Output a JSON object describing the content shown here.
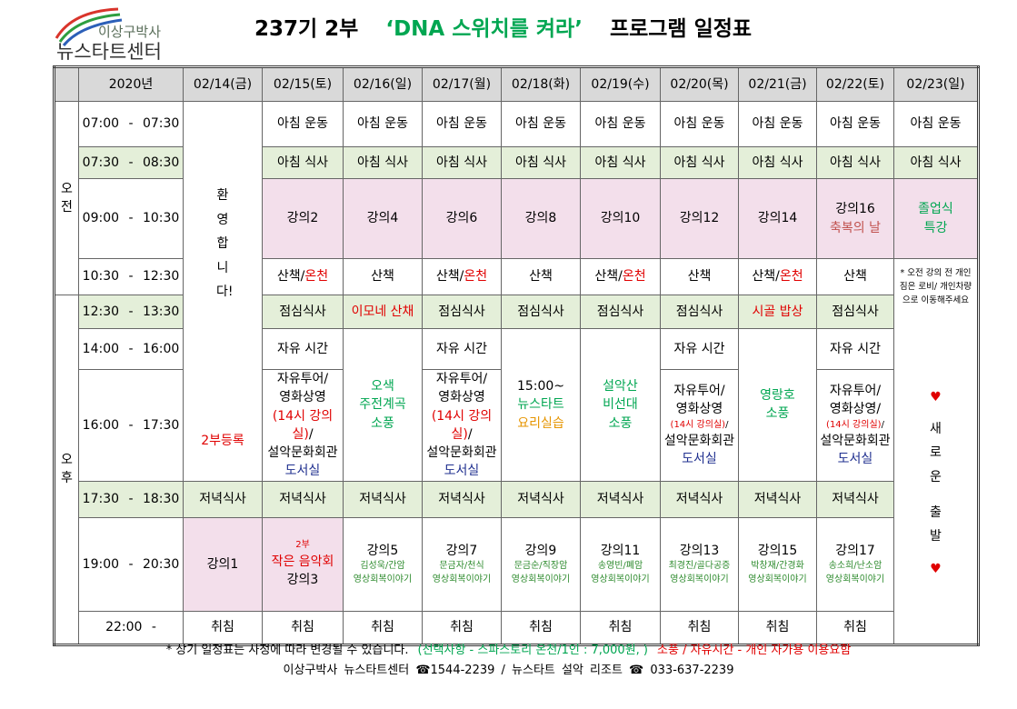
{
  "header": {
    "logo_line1": "이상구박사",
    "logo_line2": "뉴스타트센터",
    "title": [
      "237기 2부",
      {
        "text": "‘DNA 스위치를 켜라’",
        "color": "#00a651"
      },
      "프로그램 일정표"
    ]
  },
  "table": {
    "corner": "2020년",
    "dates": [
      "02/14(금)",
      "02/15(토)",
      "02/16(일)",
      "02/17(월)",
      "02/18(화)",
      "02/19(수)",
      "02/20(목)",
      "02/21(금)",
      "02/22(토)",
      "02/23(일)"
    ],
    "periods": [
      [
        "오",
        "전"
      ],
      [
        "오",
        "후"
      ]
    ],
    "rows": [
      {
        "time": "07:00 - 07:30",
        "cells": [
          {
            "lines": [
              "환영합니다!",
              {
                "text": "2부등록",
                "color": "#e00000"
              }
            ]
          },
          {
            "lines": [
              "아침 운동"
            ]
          },
          {
            "lines": [
              "아침 운동"
            ]
          },
          {
            "lines": [
              "아침 운동"
            ]
          },
          {
            "lines": [
              "아침 운동"
            ]
          },
          {
            "lines": [
              "아침 운동"
            ]
          },
          {
            "lines": [
              "아침 운동"
            ]
          },
          {
            "lines": [
              "아침 운동"
            ]
          },
          {
            "lines": [
              "아침 운동"
            ]
          },
          {
            "lines": [
              "아침 운동"
            ]
          }
        ]
      },
      {
        "time": "07:30 - 08:30",
        "bg": "#e4efd9",
        "cells": [
          {
            "lines": [
              "아침 식사"
            ]
          },
          {
            "lines": [
              "아침 식사"
            ]
          },
          {
            "lines": [
              "아침 식사"
            ]
          },
          {
            "lines": [
              "아침 식사"
            ]
          },
          {
            "lines": [
              "아침 식사"
            ]
          },
          {
            "lines": [
              "아침 식사"
            ]
          },
          {
            "lines": [
              "아침 식사"
            ]
          },
          {
            "lines": [
              "아침 식사"
            ]
          },
          {
            "lines": [
              "아침 식사"
            ]
          }
        ]
      },
      {
        "time": "09:00 - 10:30",
        "cell_bg": "#f3dfeb",
        "cells": [
          {
            "lines": [
              "강의2"
            ]
          },
          {
            "lines": [
              "강의4"
            ]
          },
          {
            "lines": [
              "강의6"
            ]
          },
          {
            "lines": [
              "강의8"
            ]
          },
          {
            "lines": [
              "강의10"
            ]
          },
          {
            "lines": [
              "강의12"
            ]
          },
          {
            "lines": [
              "강의14"
            ]
          },
          {
            "lines": [
              "강의16",
              {
                "text": "축복의 날",
                "color": "#c0504d"
              }
            ]
          },
          {
            "lines": [
              {
                "text": "졸업식",
                "color": "#00a651"
              },
              {
                "text": "특강",
                "color": "#00a651"
              }
            ]
          }
        ]
      },
      {
        "time": "10:30 - 12:30",
        "cells": [
          {
            "lines": [
              [
                "산책/",
                {
                  "text": "온천",
                  "color": "#e00000"
                }
              ]
            ]
          },
          {
            "lines": [
              "산책"
            ]
          },
          {
            "lines": [
              [
                "산책/",
                {
                  "text": "온천",
                  "color": "#e00000"
                }
              ]
            ]
          },
          {
            "lines": [
              "산책"
            ]
          },
          {
            "lines": [
              [
                "산책/",
                {
                  "text": "온천",
                  "color": "#e00000"
                }
              ]
            ]
          },
          {
            "lines": [
              "산책"
            ]
          },
          {
            "lines": [
              [
                "산책/",
                {
                  "text": "온천",
                  "color": "#e00000"
                }
              ]
            ]
          },
          {
            "lines": [
              "산책"
            ]
          },
          {
            "lines": [
              "* 오전 강의 전 개인 짐은 로비/ 개인차량으로 이동해주세요",
              {
                "text": "♥",
                "color": "#e00000"
              },
              "새로운",
              "출발",
              {
                "text": "♥",
                "color": "#e00000"
              }
            ]
          }
        ]
      },
      {
        "time": "12:30 - 13:30",
        "bg": "#e4efd9",
        "cells": [
          {
            "lines": [
              "점심식사"
            ]
          },
          {
            "lines": [
              {
                "text": "이모네 산채",
                "color": "#e00000"
              }
            ]
          },
          {
            "lines": [
              "점심식사"
            ]
          },
          {
            "lines": [
              "점심식사"
            ]
          },
          {
            "lines": [
              "점심식사"
            ]
          },
          {
            "lines": [
              "점심식사"
            ]
          },
          {
            "lines": [
              {
                "text": "시골 밥상",
                "color": "#e00000"
              }
            ]
          },
          {
            "lines": [
              "점심식사"
            ]
          }
        ]
      },
      {
        "time": "14:00 - 16:00",
        "cells": [
          {
            "lines": [
              "자유 시간"
            ]
          },
          {
            "lines": [
              {
                "text": "오색",
                "color": "#00a651"
              },
              {
                "text": "주전계곡",
                "color": "#00a651"
              },
              {
                "text": "소풍",
                "color": "#00a651"
              }
            ]
          },
          {
            "lines": [
              "자유 시간"
            ]
          },
          {
            "lines": [
              "15:00~",
              {
                "text": "뉴스타트",
                "color": "#00a651"
              },
              {
                "text": "요리실습",
                "color": "#e69500"
              }
            ]
          },
          {
            "lines": [
              {
                "text": "설악산",
                "color": "#00a651"
              },
              {
                "text": "비선대",
                "color": "#00a651"
              },
              {
                "text": "소풍",
                "color": "#00a651"
              }
            ]
          },
          {
            "lines": [
              "자유 시간"
            ]
          },
          {
            "lines": [
              {
                "text": "영랑호",
                "color": "#00a651"
              },
              {
                "text": "소풍",
                "color": "#00a651"
              }
            ]
          },
          {
            "lines": [
              "자유 시간"
            ]
          }
        ]
      },
      {
        "time": "16:00 - 17:30",
        "cells": [
          {
            "lines": [
              "자유투어/",
              "영화상영",
              [
                {
                  "text": "(14시 강의실)",
                  "color": "#e00000"
                },
                "/"
              ],
              "설악문화회관",
              {
                "text": "도서실",
                "color": "#1f2f8f"
              }
            ]
          },
          {
            "lines": [
              "자유투어/",
              "영화상영",
              [
                {
                  "text": "(14시 강의실)",
                  "color": "#e00000"
                },
                "/"
              ],
              "설악문화회관",
              {
                "text": "도서실",
                "color": "#1f2f8f"
              }
            ]
          },
          {
            "lines": [
              "자유투어/",
              "영화상영",
              [
                {
                  "text": "(14시 강의실)",
                  "color": "#e00000"
                },
                "/"
              ],
              "설악문화회관",
              {
                "text": "도서실",
                "color": "#1f2f8f"
              }
            ]
          },
          {
            "lines": [
              "자유투어/",
              "영화상영/",
              [
                {
                  "text": "(14시 강의실)",
                  "color": "#e00000"
                },
                "/"
              ],
              "설악문화회관",
              {
                "text": "도서실",
                "color": "#1f2f8f"
              }
            ]
          }
        ]
      },
      {
        "time": "17:30 - 18:30",
        "bg": "#e4efd9",
        "cells": [
          {
            "lines": [
              "저녁식사"
            ]
          },
          {
            "lines": [
              "저녁식사"
            ]
          },
          {
            "lines": [
              "저녁식사"
            ]
          },
          {
            "lines": [
              "저녁식사"
            ]
          },
          {
            "lines": [
              "저녁식사"
            ]
          },
          {
            "lines": [
              "저녁식사"
            ]
          },
          {
            "lines": [
              "저녁식사"
            ]
          },
          {
            "lines": [
              "저녁식사"
            ]
          },
          {
            "lines": [
              "저녁식사"
            ]
          }
        ]
      },
      {
        "time": "19:00 - 20:30",
        "cells": [
          {
            "lines": [
              "강의1"
            ],
            "bg": "#f3dfeb"
          },
          {
            "lines": [
              {
                "text": "2부",
                "color": "#e00000"
              },
              {
                "text": "작은 음악회",
                "color": "#e00000"
              },
              "강의3"
            ],
            "bg": "#f3dfeb"
          },
          {
            "lines": [
              "강의5",
              {
                "text": "김성욱/간암",
                "color": "#2e8b2e"
              },
              {
                "text": "영상회복이야기",
                "color": "#2e8b2e"
              }
            ]
          },
          {
            "lines": [
              "강의7",
              {
                "text": "문금자/천식",
                "color": "#2e8b2e"
              },
              {
                "text": "영상회복이야기",
                "color": "#2e8b2e"
              }
            ]
          },
          {
            "lines": [
              "강의9",
              {
                "text": "문금순/직장암",
                "color": "#2e8b2e"
              },
              {
                "text": "영상회복이야기",
                "color": "#2e8b2e"
              }
            ]
          },
          {
            "lines": [
              "강의11",
              {
                "text": "송영빈/폐암",
                "color": "#2e8b2e"
              },
              {
                "text": "영상회복이야기",
                "color": "#2e8b2e"
              }
            ]
          },
          {
            "lines": [
              "강의13",
              {
                "text": "최경진/골다공증",
                "color": "#2e8b2e"
              },
              {
                "text": "영상회복이야기",
                "color": "#2e8b2e"
              }
            ]
          },
          {
            "lines": [
              "강의15",
              {
                "text": "박창재/간경화",
                "color": "#2e8b2e"
              },
              {
                "text": "영상회복이야기",
                "color": "#2e8b2e"
              }
            ]
          },
          {
            "lines": [
              "강의17",
              {
                "text": "송소희/난소암",
                "color": "#2e8b2e"
              },
              {
                "text": "영상회복이야기",
                "color": "#2e8b2e"
              }
            ]
          }
        ]
      },
      {
        "time": "22:00 -",
        "cells": [
          {
            "lines": [
              "취침"
            ]
          },
          {
            "lines": [
              "취침"
            ]
          },
          {
            "lines": [
              "취침"
            ]
          },
          {
            "lines": [
              "취침"
            ]
          },
          {
            "lines": [
              "취침"
            ]
          },
          {
            "lines": [
              "취침"
            ]
          },
          {
            "lines": [
              "취침"
            ]
          },
          {
            "lines": [
              "취침"
            ]
          },
          {
            "lines": [
              "취침"
            ]
          }
        ]
      }
    ]
  },
  "footer": {
    "line1": [
      "* 상기 일정표는 사정에 따라 변경될 수 있습니다.",
      {
        "text": "(선택사항 - 스파스토리 온천/1인 : 7,000원, )",
        "color": "#00a651"
      },
      {
        "text": "소풍 / 자유시간 - 개인 자가용 이용요함",
        "color": "#e00000"
      }
    ],
    "line2": "이상구박사 뉴스타트센터 ☎1544-2239 / 뉴스타트 설악 리조트 ☎ 033-637-2239"
  }
}
